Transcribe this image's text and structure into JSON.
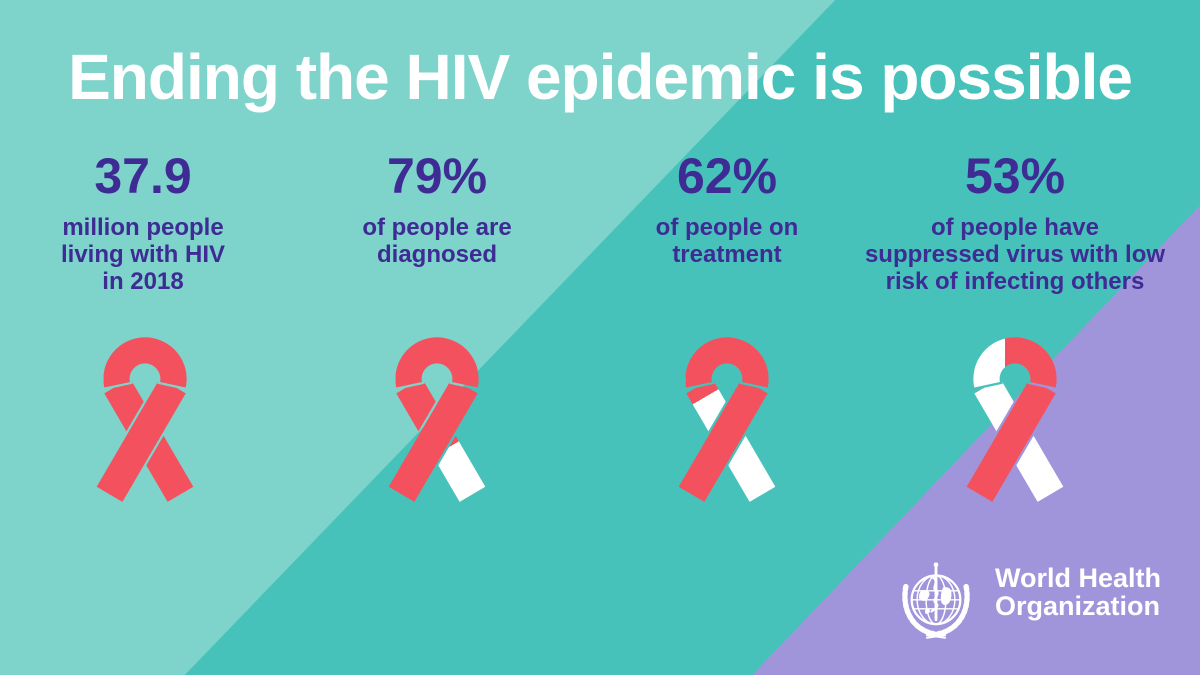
{
  "title": "Ending the HIV epidemic is possible",
  "colors": {
    "teal_dark": "#47c2ba",
    "teal_light": "#7ed3cb",
    "purple_background": "#a095da",
    "ribbon_red": "#f4515f",
    "ribbon_white": "#ffffff",
    "stat_text_purple": "#3e2b94",
    "title_white": "#ffffff"
  },
  "stats": [
    {
      "value": "37.9",
      "lines": [
        "million people",
        "living with HIV",
        "in 2018"
      ]
    },
    {
      "value": "79%",
      "lines": [
        "of people are",
        "diagnosed"
      ]
    },
    {
      "value": "62%",
      "lines": [
        "of people on",
        "treatment"
      ]
    },
    {
      "value": "53%",
      "lines": [
        "of people have",
        "suppressed virus with low",
        "risk of infecting others"
      ]
    }
  ],
  "ribbons": [
    {
      "name": "aids-ribbon-all-red",
      "under_red_until": 1,
      "arc_white_until": 0
    },
    {
      "name": "aids-ribbon-tail-white",
      "under_red_until": 0.58,
      "arc_white_until": 0
    },
    {
      "name": "aids-ribbon-underband-white",
      "under_red_until": 0.1,
      "arc_white_until": 0
    },
    {
      "name": "aids-ribbon-half-white",
      "under_red_until": 0,
      "arc_white_until": 0.38
    }
  ],
  "logo": {
    "line1": "World Health",
    "line2": "Organization"
  },
  "chart_data": {
    "type": "pictogram",
    "title": "Ending the HIV epidemic is possible",
    "categories": [
      "million people living with HIV in 2018",
      "of people are diagnosed",
      "of people on treatment",
      "of people have suppressed virus with low risk of infecting others"
    ],
    "values": [
      37.9,
      79,
      62,
      53
    ],
    "units": [
      "million",
      "%",
      "%",
      "%"
    ],
    "attribution": "World Health Organization",
    "legend_position": "none",
    "grid": false
  }
}
